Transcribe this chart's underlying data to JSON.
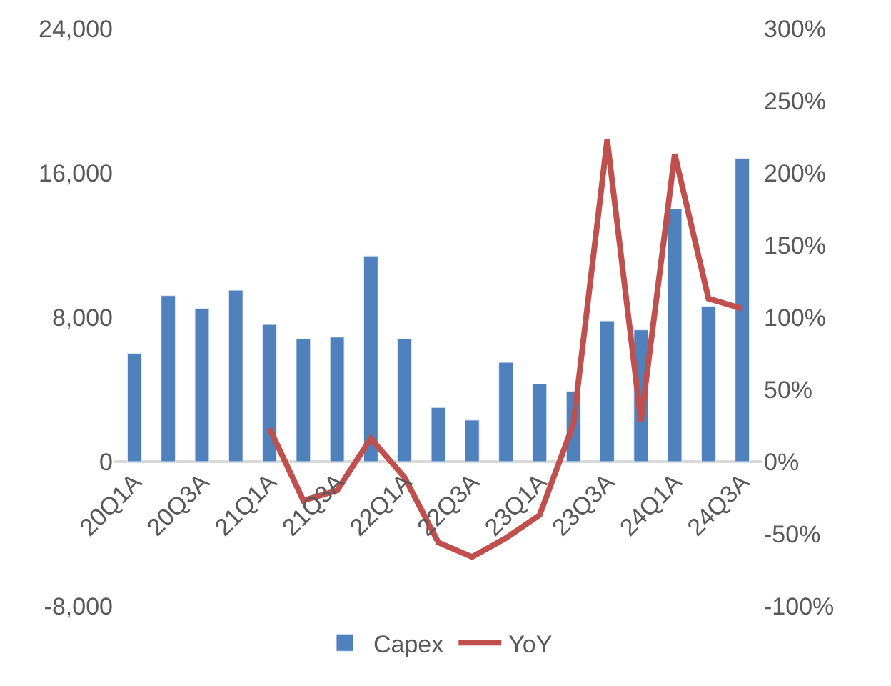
{
  "chart_data": {
    "type": "bar",
    "categories": [
      "20Q1A",
      null,
      "20Q3A",
      null,
      "21Q1A",
      null,
      "21Q3A",
      null,
      "22Q1A",
      null,
      "22Q3A",
      null,
      "23Q1A",
      null,
      "23Q3A",
      null,
      "24Q1A",
      null,
      "24Q3A"
    ],
    "series": [
      {
        "name": "Capex",
        "color": "#4f81bd",
        "values": [
          6000,
          9200,
          8500,
          9500,
          7600,
          6800,
          6900,
          11400,
          6800,
          3000,
          2300,
          5500,
          4300,
          3900,
          7800,
          7300,
          14000,
          8600,
          16800
        ]
      },
      {
        "name": "YoY",
        "type": "line",
        "axis": "y2",
        "color": "#c0504d",
        "values": [
          null,
          null,
          null,
          null,
          23,
          -27,
          -20,
          16,
          -11,
          -56,
          -66,
          -53,
          -37,
          26,
          223,
          28,
          213,
          113,
          106
        ]
      }
    ],
    "ylim": [
      -8000,
      24000
    ],
    "yticks": [
      {
        "value": -8000,
        "label": "-8,000"
      },
      0,
      {
        "value": 8000,
        "label": "8,000"
      },
      {
        "value": 16000,
        "label": "16,000"
      },
      {
        "value": 24000,
        "label": "24,000"
      }
    ],
    "y2lim": [
      -100,
      300
    ],
    "y2ticks": [
      {
        "value": -100,
        "label": "-100%"
      },
      {
        "value": -50,
        "label": "-50%"
      },
      {
        "value": 0,
        "label": "0%"
      },
      {
        "value": 50,
        "label": "50%"
      },
      {
        "value": 100,
        "label": "100%"
      },
      {
        "value": 150,
        "label": "150%"
      },
      {
        "value": 200,
        "label": "200%"
      },
      {
        "value": 250,
        "label": "250%"
      },
      {
        "value": 300,
        "label": "300%"
      }
    ],
    "legend": "bottom",
    "marker": "none",
    "line_style": "solid"
  }
}
